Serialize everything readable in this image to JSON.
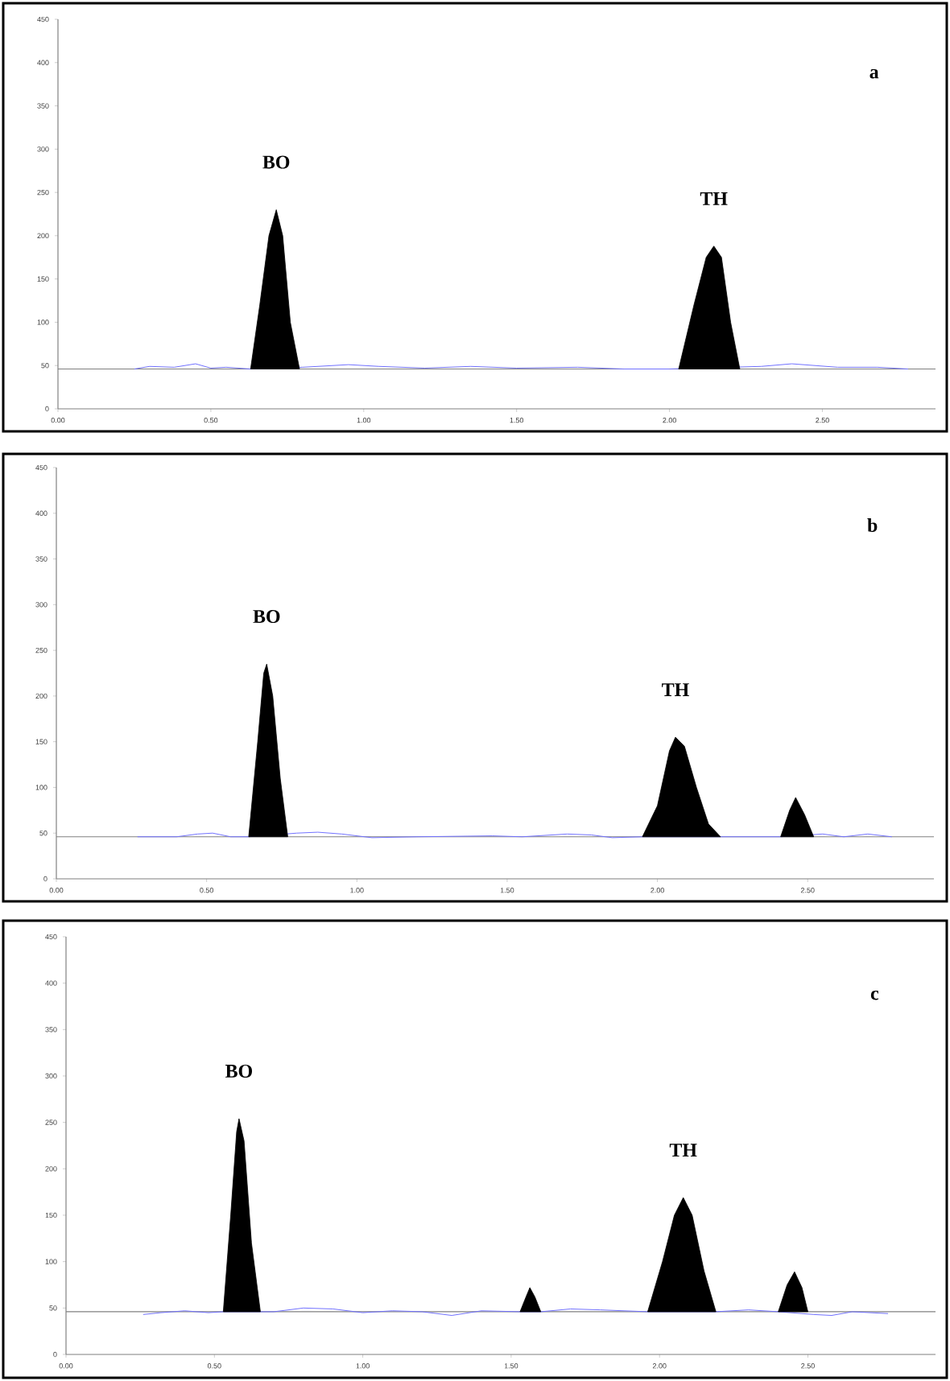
{
  "chart_data": [
    {
      "type": "line",
      "xlim": [
        0,
        2.87
      ],
      "ylim": [
        0,
        450
      ],
      "xticks": [
        {
          "value": 0,
          "label": "0.00"
        },
        {
          "value": 0.5,
          "label": "0.50"
        },
        {
          "value": 1.0,
          "label": "1.00"
        },
        {
          "value": 1.5,
          "label": "1.50"
        },
        {
          "value": 2.0,
          "label": "2.00"
        },
        {
          "value": 2.5,
          "label": "2.50"
        }
      ],
      "yticks": [
        0,
        50,
        100,
        150,
        200,
        250,
        300,
        350,
        400,
        450
      ],
      "ref_lines": [
        {
          "axis": "y",
          "value": 46,
          "color": "#808080"
        }
      ],
      "series": [
        {
          "type": "line",
          "color": "#7070ff",
          "x": [
            0.25,
            0.3,
            0.38,
            0.45,
            0.5,
            0.55,
            0.63,
            0.8,
            0.95,
            1.05,
            1.2,
            1.35,
            1.5,
            1.7,
            1.85,
            2.0,
            2.3,
            2.4,
            2.55,
            2.68,
            2.78
          ],
          "values": [
            46,
            49,
            48,
            52,
            47,
            48,
            46,
            48,
            51,
            49,
            47,
            49,
            47,
            48,
            46,
            46,
            49,
            52,
            48,
            48,
            46
          ]
        },
        {
          "type": "area",
          "color": "#000000",
          "x": [
            0.63,
            0.66,
            0.69,
            0.714,
            0.735,
            0.76,
            0.79
          ],
          "values": [
            46,
            120,
            200,
            230,
            200,
            100,
            46
          ]
        },
        {
          "type": "area",
          "color": "#000000",
          "x": [
            2.03,
            2.08,
            2.12,
            2.145,
            2.17,
            2.2,
            2.23
          ],
          "values": [
            46,
            120,
            175,
            188,
            175,
            100,
            46
          ]
        }
      ],
      "annotations": [
        {
          "text": "BO",
          "x": 0.714,
          "y": 230
        },
        {
          "text": "TH",
          "x": 2.145,
          "y": 188
        },
        "a"
      ]
    },
    {
      "type": "line",
      "xlim": [
        0,
        2.92
      ],
      "ylim": [
        0,
        450
      ],
      "xticks": [
        {
          "value": 0,
          "label": "0.00"
        },
        {
          "value": 0.5,
          "label": "0.50"
        },
        {
          "value": 1.0,
          "label": "1.00"
        },
        {
          "value": 1.5,
          "label": "1.50"
        },
        {
          "value": 2.0,
          "label": "2.00"
        },
        {
          "value": 2.5,
          "label": "2.50"
        }
      ],
      "yticks": [
        0,
        50,
        100,
        150,
        200,
        250,
        300,
        350,
        400,
        450
      ],
      "ref_lines": [
        {
          "axis": "y",
          "value": 46,
          "color": "#808080"
        }
      ],
      "series": [
        {
          "type": "line",
          "color": "#7070ff",
          "x": [
            0.27,
            0.4,
            0.47,
            0.52,
            0.58,
            0.64,
            0.8,
            0.87,
            0.95,
            1.05,
            1.2,
            1.45,
            1.55,
            1.7,
            1.78,
            1.85,
            1.95,
            2.3,
            2.41,
            2.55,
            2.62,
            2.7,
            2.78
          ],
          "values": [
            46,
            46,
            49,
            50,
            46,
            46,
            50,
            51,
            49,
            45,
            46,
            47,
            46,
            49,
            48,
            45,
            46,
            46,
            46,
            49,
            46,
            49,
            46
          ]
        },
        {
          "type": "area",
          "color": "#000000",
          "x": [
            0.64,
            0.67,
            0.69,
            0.7,
            0.72,
            0.745,
            0.77
          ],
          "values": [
            46,
            150,
            225,
            235,
            200,
            110,
            46
          ]
        },
        {
          "type": "area",
          "color": "#000000",
          "x": [
            1.95,
            2.0,
            2.04,
            2.06,
            2.09,
            2.13,
            2.17,
            2.21
          ],
          "values": [
            46,
            80,
            140,
            155,
            145,
            100,
            60,
            46
          ]
        },
        {
          "type": "area",
          "color": "#000000",
          "x": [
            2.41,
            2.44,
            2.46,
            2.49,
            2.52
          ],
          "values": [
            46,
            75,
            89,
            70,
            46
          ]
        }
      ],
      "annotations": [
        {
          "text": "BO",
          "x": 0.7,
          "y": 235
        },
        {
          "text": "TH",
          "x": 2.06,
          "y": 155
        },
        "b"
      ]
    },
    {
      "type": "line",
      "xlim": [
        0,
        2.93
      ],
      "ylim": [
        0,
        450
      ],
      "xticks": [
        {
          "value": 0,
          "label": "0.00"
        },
        {
          "value": 0.5,
          "label": "0.50"
        },
        {
          "value": 1.0,
          "label": "1.00"
        },
        {
          "value": 1.5,
          "label": "1.50"
        },
        {
          "value": 2.0,
          "label": "2.00"
        },
        {
          "value": 2.5,
          "label": "2.50"
        }
      ],
      "yticks": [
        0,
        50,
        100,
        150,
        200,
        250,
        300,
        350,
        400,
        450
      ],
      "ref_lines": [
        {
          "axis": "y",
          "value": 46,
          "color": "#808080"
        }
      ],
      "series": [
        {
          "type": "line",
          "color": "#7070ff",
          "x": [
            0.26,
            0.32,
            0.4,
            0.48,
            0.53,
            0.7,
            0.8,
            0.9,
            1.0,
            1.1,
            1.2,
            1.3,
            1.4,
            1.53,
            1.6,
            1.7,
            1.8,
            1.96,
            2.19,
            2.3,
            2.4,
            2.52,
            2.58,
            2.65,
            2.77
          ],
          "values": [
            43,
            45,
            47,
            45,
            46,
            46,
            50,
            49,
            45,
            47,
            46,
            42,
            47,
            46,
            46,
            49,
            48,
            46,
            46,
            48,
            46,
            43,
            42,
            46,
            44
          ]
        },
        {
          "type": "area",
          "color": "#000000",
          "x": [
            0.53,
            0.555,
            0.575,
            0.583,
            0.6,
            0.625,
            0.655
          ],
          "values": [
            46,
            150,
            240,
            254,
            230,
            120,
            46
          ]
        },
        {
          "type": "area",
          "color": "#000000",
          "x": [
            1.53,
            1.55,
            1.563,
            1.58,
            1.6
          ],
          "values": [
            46,
            62,
            72,
            62,
            46
          ]
        },
        {
          "type": "area",
          "color": "#000000",
          "x": [
            1.96,
            2.01,
            2.05,
            2.08,
            2.11,
            2.15,
            2.19
          ],
          "values": [
            46,
            100,
            150,
            169,
            150,
            90,
            46
          ]
        },
        {
          "type": "area",
          "color": "#000000",
          "x": [
            2.4,
            2.43,
            2.455,
            2.48,
            2.5
          ],
          "values": [
            46,
            75,
            89,
            72,
            46
          ]
        }
      ],
      "annotations": [
        {
          "text": "BO",
          "x": 0.583,
          "y": 254
        },
        {
          "text": "TH",
          "x": 2.08,
          "y": 169
        },
        "c"
      ]
    }
  ]
}
